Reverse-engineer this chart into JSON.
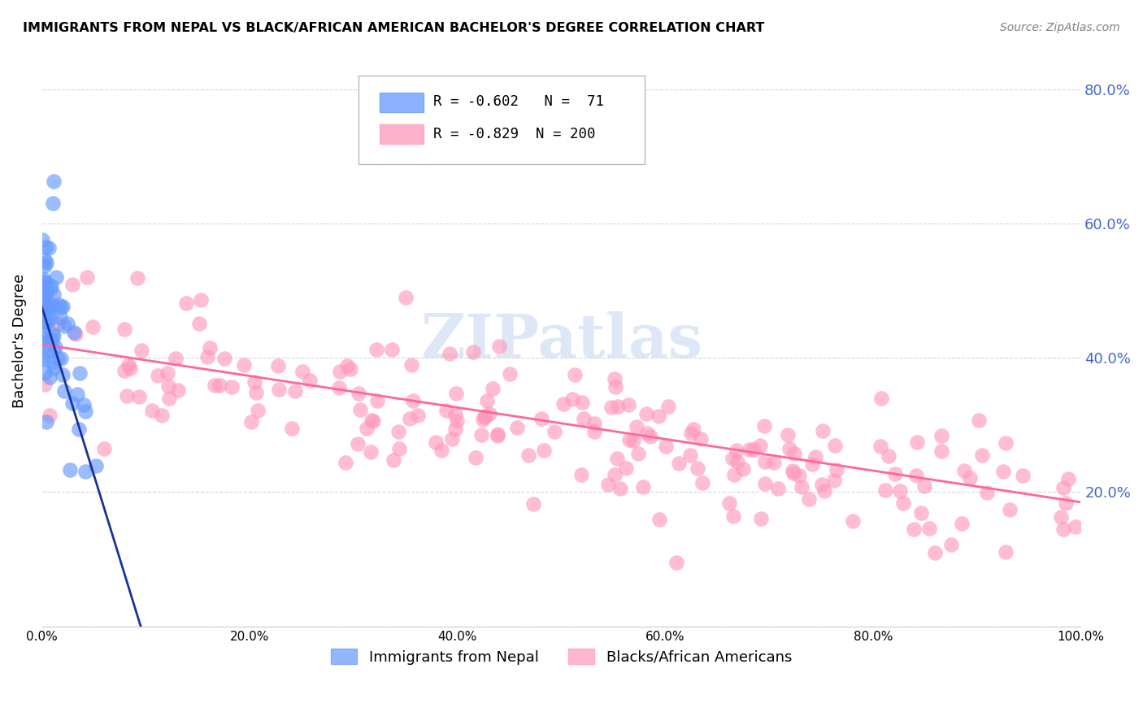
{
  "title": "IMMIGRANTS FROM NEPAL VS BLACK/AFRICAN AMERICAN BACHELOR'S DEGREE CORRELATION CHART",
  "source": "Source: ZipAtlas.com",
  "ylabel": "Bachelor's Degree",
  "watermark": "ZIPatlas",
  "legend_blue_r": "-0.602",
  "legend_blue_n": "71",
  "legend_pink_r": "-0.829",
  "legend_pink_n": "200",
  "right_ytick_labels": [
    "20.0%",
    "40.0%",
    "60.0%",
    "80.0%"
  ],
  "right_ytick_vals": [
    0.2,
    0.4,
    0.6,
    0.8
  ],
  "grid_color": "#cccccc",
  "blue_color": "#6699ff",
  "blue_line_color": "#1a3399",
  "pink_color": "#ff99bb",
  "pink_line_color": "#ff6699",
  "legend_label_blue": "Immigrants from Nepal",
  "legend_label_pink": "Blacks/African Americans",
  "axis_label_color": "#4466cc",
  "watermark_color": "#c8d8f0"
}
